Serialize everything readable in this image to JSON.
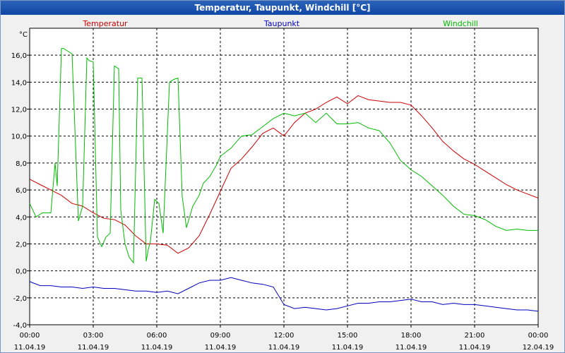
{
  "window": {
    "title": "Temperatur, Taupunkt, Windchill [°C]"
  },
  "chart_data": {
    "type": "line",
    "title": "Temperatur, Taupunkt, Windchill [°C]",
    "ylabel": "°C",
    "xlabel": "",
    "ylim": [
      -4,
      18
    ],
    "xlim": [
      0,
      24
    ],
    "grid": true,
    "y_ticks": [
      "-4,0",
      "-2,0",
      "0,0",
      "2,0",
      "4,0",
      "6,0",
      "8,0",
      "10,0",
      "12,0",
      "14,0",
      "16,0"
    ],
    "x_ticks": [
      {
        "time": "00:00",
        "date": "11.04.19"
      },
      {
        "time": "03:00",
        "date": "11.04.19"
      },
      {
        "time": "06:00",
        "date": "11.04.19"
      },
      {
        "time": "09:00",
        "date": "11.04.19"
      },
      {
        "time": "12:00",
        "date": "11.04.19"
      },
      {
        "time": "15:00",
        "date": "11.04.19"
      },
      {
        "time": "18:00",
        "date": "11.04.19"
      },
      {
        "time": "21:00",
        "date": "11.04.19"
      },
      {
        "time": "00:00",
        "date": "12.04.19"
      }
    ],
    "series": [
      {
        "name": "Temperatur",
        "color": "#cc0000",
        "x": [
          0,
          0.5,
          1,
          1.5,
          2,
          2.5,
          3,
          3.5,
          4,
          4.5,
          5,
          5.5,
          6,
          6.5,
          7,
          7.5,
          8,
          8.5,
          9,
          9.5,
          10,
          10.5,
          11,
          11.5,
          12,
          12.5,
          13,
          13.5,
          14,
          14.5,
          15,
          15.5,
          16,
          16.5,
          17,
          17.5,
          18,
          18.5,
          19,
          19.5,
          20,
          20.5,
          21,
          21.5,
          22,
          22.5,
          23,
          23.5,
          24
        ],
        "values": [
          6.8,
          6.4,
          6.0,
          5.6,
          5.0,
          4.8,
          4.3,
          3.9,
          3.8,
          3.4,
          2.6,
          2.0,
          2.0,
          1.9,
          1.3,
          1.7,
          2.6,
          4.2,
          5.9,
          7.6,
          8.3,
          9.2,
          10.2,
          10.6,
          10.0,
          11.0,
          11.7,
          12.0,
          12.5,
          12.9,
          12.4,
          13.0,
          12.7,
          12.6,
          12.5,
          12.5,
          12.3,
          11.5,
          10.6,
          9.6,
          8.9,
          8.3,
          7.9,
          7.4,
          6.9,
          6.4,
          6.0,
          5.7,
          5.4
        ]
      },
      {
        "name": "Taupunkt",
        "color": "#0000bb",
        "x": [
          0,
          0.5,
          1,
          1.5,
          2,
          2.5,
          3,
          3.5,
          4,
          4.5,
          5,
          5.5,
          6,
          6.5,
          7,
          7.5,
          8,
          8.5,
          9,
          9.5,
          10,
          10.5,
          11,
          11.5,
          12,
          12.5,
          13,
          13.5,
          14,
          14.5,
          15,
          15.5,
          16,
          16.5,
          17,
          17.5,
          18,
          18.5,
          19,
          19.5,
          20,
          20.5,
          21,
          21.5,
          22,
          22.5,
          23,
          23.5,
          24
        ],
        "values": [
          -0.8,
          -1.1,
          -1.1,
          -1.2,
          -1.2,
          -1.3,
          -1.2,
          -1.3,
          -1.3,
          -1.4,
          -1.5,
          -1.5,
          -1.6,
          -1.5,
          -1.7,
          -1.3,
          -0.9,
          -0.7,
          -0.7,
          -0.5,
          -0.7,
          -0.9,
          -1.0,
          -1.2,
          -2.5,
          -2.8,
          -2.7,
          -2.8,
          -2.9,
          -2.8,
          -2.6,
          -2.4,
          -2.4,
          -2.3,
          -2.3,
          -2.2,
          -2.1,
          -2.3,
          -2.3,
          -2.5,
          -2.4,
          -2.5,
          -2.5,
          -2.6,
          -2.7,
          -2.8,
          -2.9,
          -2.9,
          -3.0
        ]
      },
      {
        "name": "Windchill",
        "color": "#00bb00",
        "x": [
          0,
          0.3,
          0.6,
          1.0,
          1.2,
          1.3,
          1.5,
          1.6,
          1.8,
          2.0,
          2.3,
          2.5,
          2.7,
          2.8,
          3.0,
          3.2,
          3.4,
          3.6,
          3.8,
          4.0,
          4.2,
          4.3,
          4.5,
          4.7,
          4.9,
          5.1,
          5.3,
          5.5,
          5.6,
          5.7,
          5.9,
          6.1,
          6.3,
          6.6,
          6.8,
          7.0,
          7.2,
          7.4,
          7.7,
          8.0,
          8.2,
          8.5,
          8.8,
          9.0,
          9.5,
          10.0,
          10.5,
          11.0,
          11.5,
          12.0,
          12.5,
          13.0,
          13.5,
          14.0,
          14.5,
          15.0,
          15.5,
          16.0,
          16.5,
          17.0,
          17.5,
          18.0,
          18.5,
          19.0,
          19.5,
          20.0,
          20.5,
          21.0,
          21.5,
          22.0,
          22.5,
          23.0,
          23.5,
          24.0
        ],
        "values": [
          5.0,
          4.0,
          4.3,
          4.3,
          8.0,
          6.3,
          16.5,
          16.5,
          16.3,
          16.1,
          3.7,
          4.8,
          15.8,
          15.6,
          15.5,
          2.5,
          1.8,
          2.5,
          2.8,
          15.2,
          15.0,
          4.5,
          2.0,
          1.0,
          0.6,
          14.3,
          14.3,
          0.7,
          1.6,
          2.2,
          5.3,
          5.0,
          2.8,
          14.0,
          14.2,
          14.3,
          5.5,
          3.2,
          4.8,
          5.6,
          6.5,
          7.0,
          7.8,
          8.5,
          9.1,
          10.0,
          10.1,
          10.7,
          11.3,
          11.7,
          11.5,
          11.7,
          11.0,
          11.7,
          10.9,
          10.9,
          11.0,
          10.6,
          10.4,
          9.5,
          8.2,
          7.5,
          7.0,
          6.3,
          5.6,
          4.8,
          4.2,
          4.1,
          3.8,
          3.3,
          3.0,
          3.1,
          3.0,
          3.0
        ]
      }
    ]
  }
}
